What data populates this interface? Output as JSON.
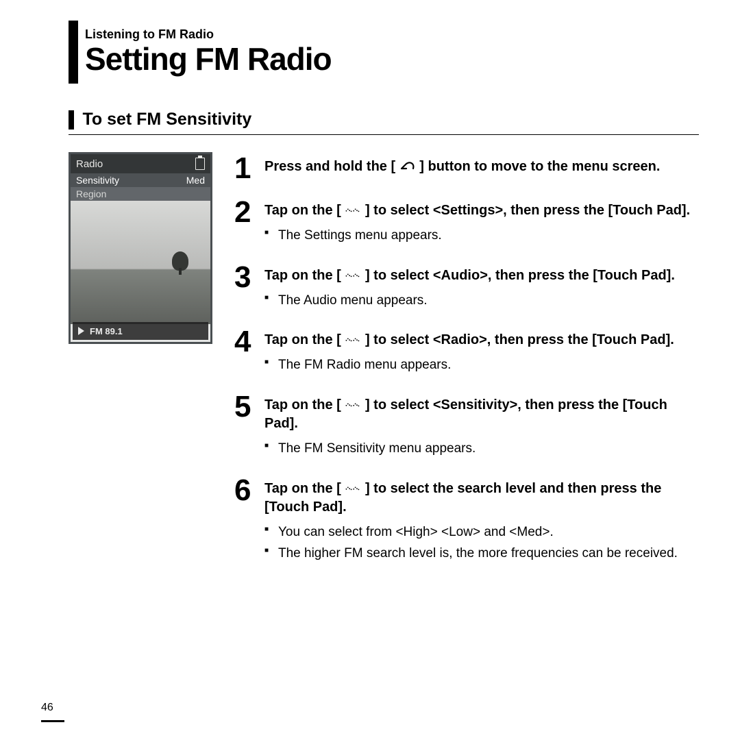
{
  "header": {
    "breadcrumb": "Listening to FM Radio",
    "title": "Setting FM Radio"
  },
  "section": {
    "title": "To set FM Sensitivity"
  },
  "device": {
    "topbar_title": "Radio",
    "menu": [
      {
        "label": "Sensitivity",
        "value": "Med",
        "selected": true
      },
      {
        "label": "Region",
        "value": "",
        "selected": false
      }
    ],
    "footer_text": "FM 89.1"
  },
  "icons": {
    "back_arrow": "↩",
    "touch_dots": "⋯"
  },
  "steps": [
    {
      "num": "1",
      "parts": [
        "Press and hold the [ ",
        "@back",
        " ] button to move to the menu screen."
      ],
      "notes": []
    },
    {
      "num": "2",
      "parts": [
        "Tap on the [ ",
        "@dots",
        " ] to select <Settings>, then press the [Touch Pad]."
      ],
      "notes": [
        "The Settings menu appears."
      ]
    },
    {
      "num": "3",
      "parts": [
        "Tap on the [ ",
        "@dots",
        " ] to select <Audio>, then press the [Touch Pad]."
      ],
      "notes": [
        "The Audio menu appears."
      ]
    },
    {
      "num": "4",
      "parts": [
        "Tap on the [ ",
        "@dots",
        " ] to select <Radio>, then press the [Touch Pad]."
      ],
      "notes": [
        "The FM Radio menu appears."
      ]
    },
    {
      "num": "5",
      "parts": [
        "Tap on the [ ",
        "@dots",
        " ] to select <Sensitivity>, then press the [Touch Pad]."
      ],
      "notes": [
        "The FM Sensitivity menu appears."
      ]
    },
    {
      "num": "6",
      "parts": [
        "Tap on the [ ",
        "@dots",
        " ] to select the search level and then press the [Touch Pad]."
      ],
      "notes": [
        "You can select from <High> <Low> and <Med>.",
        "The higher FM search level is, the more frequencies can be received."
      ]
    }
  ],
  "page_number": "46"
}
